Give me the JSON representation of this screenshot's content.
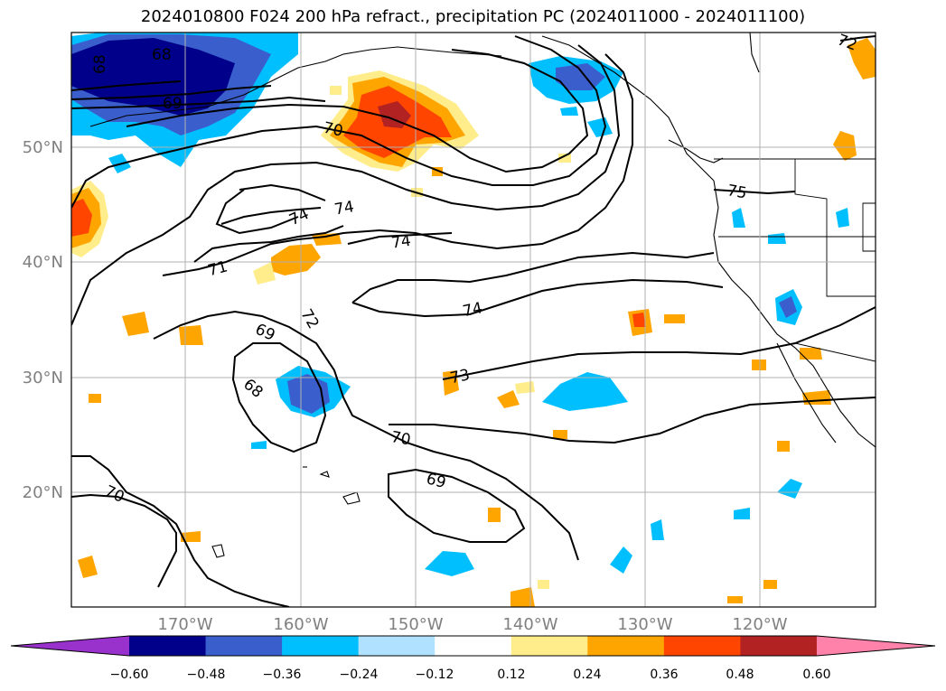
{
  "title": "2024010800 F024 200 hPa refract., precipitation PC (2024011000 - 2024011100)",
  "lat_labels": [
    "50°N",
    "40°N",
    "30°N",
    "20°N"
  ],
  "lon_labels": [
    "170°W",
    "160°W",
    "150°W",
    "140°W",
    "130°W",
    "120°W"
  ],
  "contour_labels": [
    "68",
    "68",
    "69",
    "70",
    "74",
    "74",
    "74",
    "71",
    "72",
    "69",
    "68",
    "74",
    "73",
    "70",
    "69",
    "70",
    "75",
    "72"
  ],
  "colorbar": {
    "ticks": [
      "−0.60",
      "−0.48",
      "−0.36",
      "−0.24",
      "−0.12",
      "0.12",
      "0.24",
      "0.36",
      "0.48",
      "0.60"
    ],
    "colors": [
      "#9932cc",
      "#00008b",
      "#3a5fcd",
      "#00bfff",
      "#b0e2ff",
      "#ffffff",
      "#ffec8b",
      "#ffa500",
      "#ff4500",
      "#b22222",
      "#ff82ab"
    ]
  }
}
